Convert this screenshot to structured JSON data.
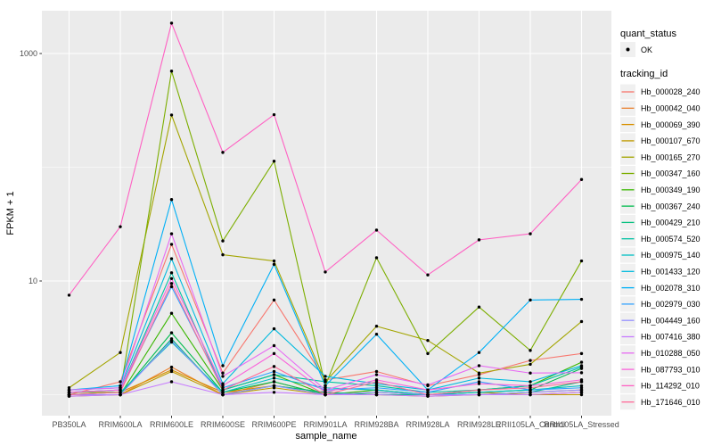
{
  "chart_data": {
    "type": "line",
    "scale_y": "log10",
    "title": "",
    "xlabel": "sample_name",
    "ylabel": "FPKM + 1",
    "ylim": [
      0.8,
      2500
    ],
    "y_ticks": [
      {
        "label": "10",
        "value": 10
      },
      {
        "label": "1000",
        "value": 1000
      }
    ],
    "y_minor_gridlines": [
      1,
      100
    ],
    "grid": "on",
    "legend_position": "right",
    "categories": [
      "PB350LA",
      "RRIM600LA",
      "RRIM600LE",
      "RRIM600SE",
      "RRIM600PE",
      "RRIM901LA",
      "RRIM928BA",
      "RRIM928LA",
      "RRIM928LE",
      "RRII105LA_Control",
      "RRII105LA_Stressed"
    ],
    "series": [
      {
        "name": "Hb_000028_240",
        "color": "#F8766D",
        "values": [
          1.0,
          1.3,
          21,
          1.55,
          6.8,
          1.35,
          1.6,
          1.2,
          1.5,
          2.0,
          2.3
        ]
      },
      {
        "name": "Hb_000042_040",
        "color": "#EA8331",
        "values": [
          1.0,
          1.0,
          1.75,
          1.0,
          1.3,
          1.0,
          1.05,
          1.0,
          1.0,
          1.05,
          1.1
        ]
      },
      {
        "name": "Hb_000069_390",
        "color": "#D89000",
        "values": [
          1.0,
          1.05,
          1.65,
          1.05,
          1.2,
          1.05,
          1.0,
          1.0,
          1.05,
          1.0,
          1.05
        ]
      },
      {
        "name": "Hb_000107_670",
        "color": "#C09B00",
        "values": [
          0.97,
          1.0,
          1.6,
          1.0,
          1.15,
          1.0,
          1.0,
          0.97,
          1.0,
          1.0,
          1.0
        ]
      },
      {
        "name": "Hb_000165_270",
        "color": "#A3A500",
        "values": [
          1.15,
          2.35,
          288,
          17,
          15,
          1.3,
          4.0,
          3.0,
          1.55,
          1.85,
          4.4
        ]
      },
      {
        "name": "Hb_000347_160",
        "color": "#7CAE00",
        "values": [
          1.05,
          1.05,
          700,
          22.5,
          113,
          1.2,
          16,
          2.3,
          5.9,
          2.45,
          15
        ]
      },
      {
        "name": "Hb_000349_190",
        "color": "#39B600",
        "values": [
          1.0,
          1.0,
          5.2,
          1.1,
          1.5,
          1.0,
          1.1,
          1.0,
          1.1,
          1.2,
          1.93
        ]
      },
      {
        "name": "Hb_000367_240",
        "color": "#00BB4E",
        "values": [
          1.0,
          1.0,
          3.5,
          1.05,
          1.3,
          1.0,
          1.05,
          1.0,
          1.05,
          1.1,
          1.7
        ]
      },
      {
        "name": "Hb_000429_210",
        "color": "#00BF7D",
        "values": [
          1.0,
          1.0,
          3.1,
          1.0,
          1.2,
          1.05,
          1.0,
          1.0,
          1.0,
          1.05,
          1.3
        ]
      },
      {
        "name": "Hb_000574_520",
        "color": "#00C1A3",
        "values": [
          1.05,
          1.1,
          11.8,
          1.1,
          1.5,
          1.3,
          1.2,
          1.05,
          1.1,
          1.2,
          1.75
        ]
      },
      {
        "name": "Hb_000975_140",
        "color": "#00BFC4",
        "values": [
          1.0,
          1.05,
          2.9,
          1.05,
          1.4,
          1.15,
          1.1,
          1.0,
          1.05,
          1.1,
          1.2
        ]
      },
      {
        "name": "Hb_001433_120",
        "color": "#00BADE",
        "values": [
          1.1,
          1.15,
          15.7,
          1.25,
          3.8,
          1.45,
          1.25,
          1.1,
          1.4,
          1.3,
          1.8
        ]
      },
      {
        "name": "Hb_002078_310",
        "color": "#00B0F6",
        "values": [
          1.1,
          1.2,
          52,
          1.8,
          14,
          1.2,
          3.4,
          1.1,
          2.35,
          6.8,
          6.9
        ]
      },
      {
        "name": "Hb_002979_030",
        "color": "#35A2FF",
        "values": [
          1.05,
          1.1,
          8.9,
          1.15,
          1.6,
          1.1,
          1.15,
          1.05,
          1.3,
          1.1,
          1.15
        ]
      },
      {
        "name": "Hb_004449_160",
        "color": "#9590FF",
        "values": [
          1.0,
          1.0,
          3.0,
          1.0,
          1.2,
          1.0,
          1.05,
          1.0,
          1.0,
          1.05,
          1.1
        ]
      },
      {
        "name": "Hb_007416_380",
        "color": "#C77CFF",
        "values": [
          0.97,
          1.0,
          1.3,
          1.0,
          1.05,
          1.0,
          1.0,
          0.97,
          1.0,
          1.0,
          1.05
        ]
      },
      {
        "name": "Hb_010288_050",
        "color": "#E76BF3",
        "values": [
          1.1,
          1.15,
          26,
          1.45,
          2.7,
          1.1,
          1.5,
          1.22,
          1.8,
          1.55,
          1.56
        ]
      },
      {
        "name": "Hb_087793_010",
        "color": "#FA62DB",
        "values": [
          1.05,
          1.1,
          10.5,
          1.2,
          2.3,
          1.05,
          1.35,
          1.1,
          1.25,
          1.2,
          1.35
        ]
      },
      {
        "name": "Hb_114292_010",
        "color": "#FF61C3",
        "values": [
          7.5,
          30,
          1850,
          135,
          290,
          12,
          28,
          11.3,
          23,
          26,
          78
        ]
      },
      {
        "name": "Hb_171646_010",
        "color": "#FF6A98",
        "values": [
          1.0,
          1.05,
          9.5,
          1.1,
          1.77,
          1.0,
          1.3,
          1.0,
          1.1,
          1.15,
          1.3
        ]
      }
    ],
    "point_color": "#000000",
    "panel_color": "#EBEBEB",
    "gridline_color": "#FFFFFF",
    "tick_label_color": "#4D4D4D",
    "legends": {
      "quant_status": {
        "title": "quant_status",
        "items": [
          {
            "label": "OK",
            "key": "black-point"
          }
        ]
      },
      "tracking_id": {
        "title": "tracking_id"
      }
    }
  }
}
